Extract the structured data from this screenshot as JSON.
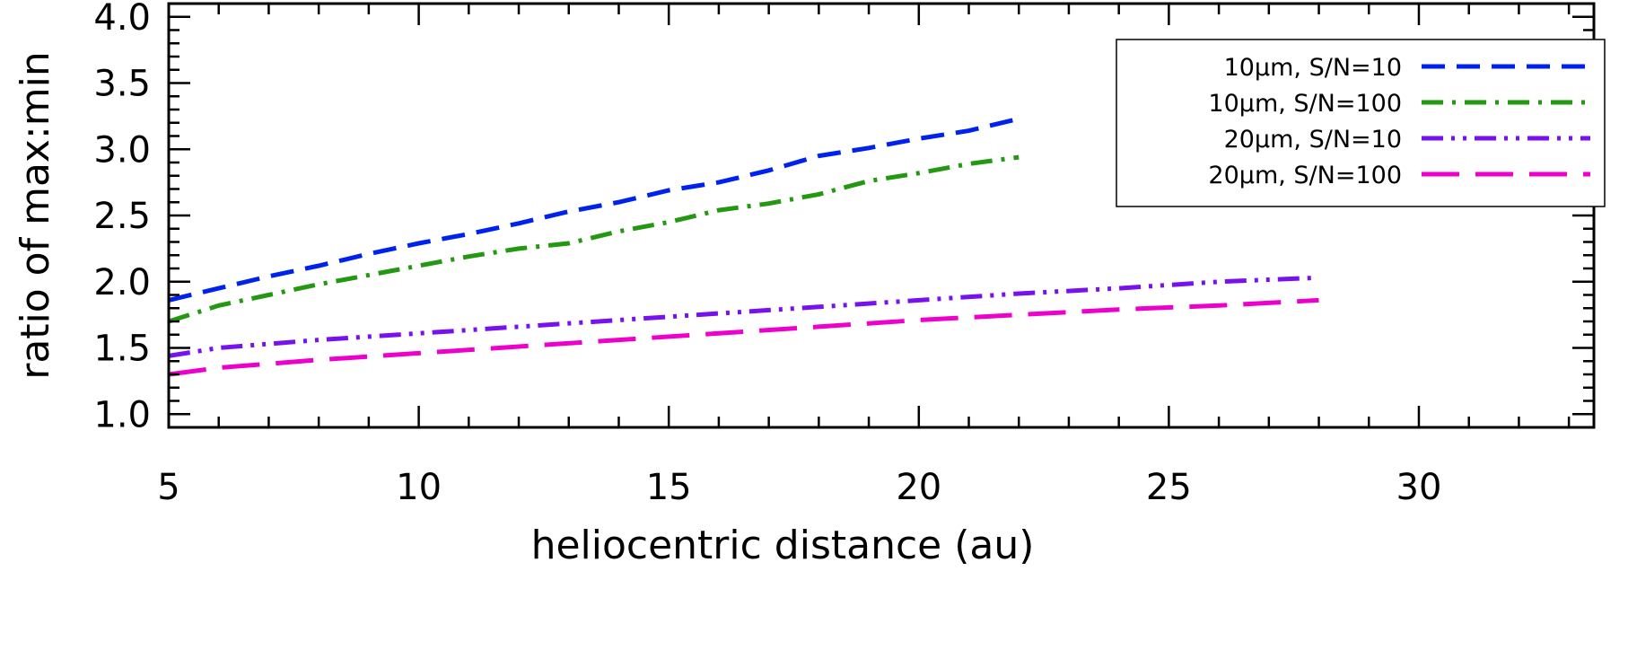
{
  "chart_data": {
    "type": "line",
    "title": "",
    "xlabel": "heliocentric distance (au)",
    "ylabel": "ratio of max:min",
    "xlim": [
      5,
      33.5
    ],
    "ylim": [
      0.9,
      4.1
    ],
    "xticks": [
      5,
      10,
      15,
      20,
      25,
      30
    ],
    "xtick_labels": [
      "5",
      "10",
      "15",
      "20",
      "25",
      "30"
    ],
    "yticks": [
      1.0,
      1.5,
      2.0,
      2.5,
      3.0,
      3.5,
      4.0
    ],
    "ytick_labels": [
      "1.0",
      "1.5",
      "2.0",
      "2.5",
      "3.0",
      "3.5",
      "4.0"
    ],
    "grid": false,
    "legend_position": "top-right",
    "series": [
      {
        "name": "10μm, S/N=10",
        "color": "#0022ee",
        "dash": "dashed",
        "x": [
          5,
          6,
          7,
          8,
          9,
          10,
          11,
          12,
          13,
          14,
          15,
          16,
          17,
          18,
          19,
          20,
          21,
          22
        ],
        "y": [
          1.86,
          1.95,
          2.04,
          2.12,
          2.21,
          2.29,
          2.36,
          2.44,
          2.53,
          2.6,
          2.69,
          2.75,
          2.84,
          2.95,
          3.01,
          3.08,
          3.14,
          3.23
        ]
      },
      {
        "name": "10μm, S/N=100",
        "color": "#229911",
        "dash": "dash-dot",
        "x": [
          5,
          6,
          7,
          8,
          9,
          10,
          11,
          12,
          13,
          14,
          15,
          16,
          17,
          18,
          19,
          20,
          21,
          22
        ],
        "y": [
          1.7,
          1.82,
          1.9,
          1.98,
          2.05,
          2.12,
          2.19,
          2.25,
          2.29,
          2.38,
          2.45,
          2.54,
          2.59,
          2.66,
          2.76,
          2.82,
          2.89,
          2.94
        ]
      },
      {
        "name": "20μm, S/N=10",
        "color": "#7711ee",
        "dash": "dash-dot-dot",
        "x": [
          5,
          6,
          8,
          10,
          12,
          14,
          16,
          18,
          20,
          22,
          24,
          26,
          28
        ],
        "y": [
          1.44,
          1.5,
          1.56,
          1.61,
          1.66,
          1.71,
          1.76,
          1.81,
          1.86,
          1.91,
          1.95,
          2.0,
          2.03
        ]
      },
      {
        "name": "20μm, S/N=100",
        "color": "#ee00cc",
        "dash": "long-dash",
        "x": [
          5,
          6,
          8,
          10,
          12,
          14,
          16,
          18,
          20,
          22,
          24,
          26,
          28
        ],
        "y": [
          1.3,
          1.35,
          1.41,
          1.46,
          1.51,
          1.56,
          1.61,
          1.66,
          1.71,
          1.75,
          1.79,
          1.82,
          1.86
        ]
      }
    ]
  }
}
